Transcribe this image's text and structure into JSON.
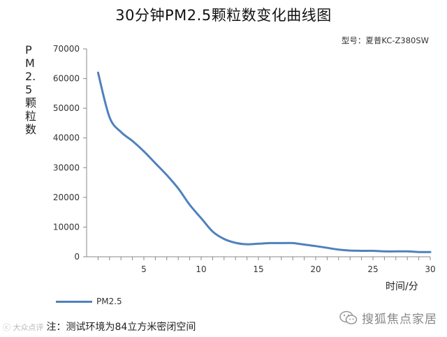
{
  "title": "30分钟PM2.5颗粒数变化曲线图",
  "model_label": "型号：夏普KC-Z380SW",
  "note": "注：测试环境为84立方米密闭空间",
  "watermark_left": "ⓒ 大众点评",
  "watermark_right": "搜狐焦点家居",
  "colors": {
    "series": "#4f81bd",
    "axis": "#888888"
  },
  "chart_data": {
    "type": "line",
    "title": "30分钟PM2.5颗粒数变化曲线图",
    "xlabel": "时间/分",
    "ylabel": "PM2.5颗粒数",
    "xlim": [
      0,
      30
    ],
    "ylim": [
      0,
      70000
    ],
    "xticks": [
      5,
      10,
      15,
      20,
      25,
      30
    ],
    "yticks": [
      0,
      10000,
      20000,
      30000,
      40000,
      50000,
      60000,
      70000
    ],
    "grid": false,
    "legend_position": "bottom-left",
    "series": [
      {
        "name": "PM2.5",
        "x": [
          1,
          2,
          3,
          4,
          5,
          6,
          7,
          8,
          9,
          10,
          11,
          12,
          13,
          14,
          15,
          16,
          17,
          18,
          19,
          20,
          21,
          22,
          23,
          24,
          25,
          26,
          27,
          28,
          29,
          30
        ],
        "y": [
          62000,
          47000,
          42000,
          39000,
          35500,
          31500,
          27500,
          23000,
          17500,
          13000,
          8500,
          6000,
          4700,
          4200,
          4400,
          4600,
          4600,
          4600,
          4100,
          3600,
          3000,
          2400,
          2100,
          2000,
          2000,
          1800,
          1800,
          1800,
          1600,
          1600
        ]
      }
    ]
  }
}
